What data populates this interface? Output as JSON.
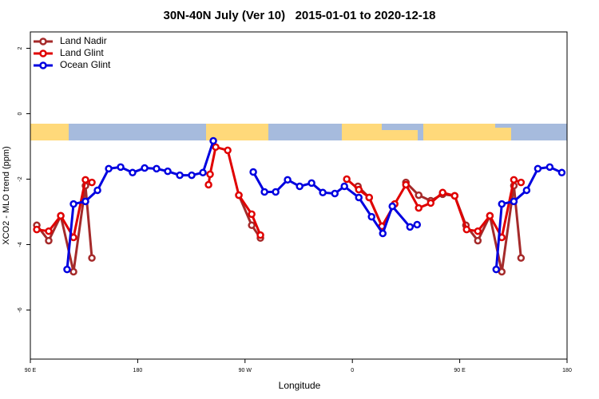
{
  "chart_data": {
    "type": "line",
    "title": "30N-40N July (Ver 10)   2015-01-01 to 2020-12-18",
    "x_label": "Longitude",
    "y_label": "XCO2 - MLO trend (ppm)",
    "xlim": [
      90,
      540
    ],
    "xticks": [
      {
        "value": 90,
        "label": "90 E"
      },
      {
        "value": 180,
        "label": "180"
      },
      {
        "value": 270,
        "label": "90 W"
      },
      {
        "value": 360,
        "label": "0"
      },
      {
        "value": 450,
        "label": "90 E"
      },
      {
        "value": 540,
        "label": "180"
      }
    ],
    "ylim": [
      -7.5,
      2.5
    ],
    "yticks": [
      -6,
      -4,
      -2,
      0,
      2
    ],
    "legend": "top-left",
    "series": [
      {
        "name": "Land Nadir",
        "color": "#a52a2a",
        "x": [
          95.4,
          105.4,
          115.5,
          126.2,
          136.2,
          141.6,
          null,
          264.8,
          275.6,
          282.9,
          null,
          364.7,
          374.1,
          384.8,
          null,
          404.9,
          415.6,
          425.7,
          435.7,
          445.8,
          455.2,
          465.2,
          475.3,
          485.3,
          495.4,
          501.4
        ],
        "values": [
          -3.41,
          -3.88,
          -3.12,
          -4.83,
          -2.2,
          -4.41,
          null,
          -2.49,
          -3.41,
          -3.8,
          null,
          -2.22,
          -2.56,
          -3.44,
          null,
          -2.1,
          -2.49,
          -2.66,
          -2.46,
          -2.51,
          -3.41,
          -3.88,
          -3.12,
          -4.83,
          -2.2,
          -4.41
        ]
      },
      {
        "name": "Land Glint",
        "color": "#e00000",
        "x": [
          95.4,
          105.4,
          115.5,
          126.2,
          136.2,
          141.6,
          null,
          239.4,
          240.7,
          245.4,
          255.5,
          264.8,
          275.6,
          282.9,
          null,
          355.3,
          365.4,
          374.1,
          384.8,
          395.5,
          404.9,
          415.6,
          425.7,
          435.7,
          445.8,
          455.8,
          465.2,
          475.3,
          485.3,
          495.4,
          501.4
        ],
        "values": [
          -3.54,
          -3.59,
          -3.12,
          -3.78,
          -2.02,
          -2.1,
          null,
          -2.17,
          -1.85,
          -1.02,
          -1.12,
          -2.49,
          -3.07,
          -3.71,
          null,
          -2.0,
          -2.32,
          -2.56,
          -3.44,
          -2.76,
          -2.17,
          -2.88,
          -2.73,
          -2.41,
          -2.51,
          -3.54,
          -3.59,
          -3.12,
          -3.78,
          -2.02,
          -2.1
        ]
      },
      {
        "name": "Ocean Glint",
        "color": "#0000e0",
        "x": [
          120.8,
          126.2,
          136.2,
          146.3,
          155.7,
          165.7,
          175.7,
          185.8,
          195.8,
          205.2,
          215.3,
          225.3,
          234.7,
          243.4,
          null,
          276.9,
          286.3,
          295.7,
          305.7,
          315.8,
          325.8,
          335.2,
          345.3,
          353.3,
          365.4,
          376.1,
          385.5,
          393.5,
          408.3,
          414.3,
          null,
          480.6,
          485.3,
          495.4,
          506.1,
          515.5,
          525.5,
          535.6
        ],
        "values": [
          -4.76,
          -2.76,
          -2.68,
          -2.34,
          -1.68,
          -1.63,
          -1.8,
          -1.66,
          -1.68,
          -1.76,
          -1.88,
          -1.88,
          -1.8,
          -0.83,
          null,
          -1.78,
          -2.39,
          -2.39,
          -2.02,
          -2.22,
          -2.12,
          -2.41,
          -2.44,
          -2.22,
          -2.56,
          -3.15,
          -3.66,
          -2.83,
          -3.46,
          -3.39,
          null,
          -4.76,
          -2.76,
          -2.68,
          -2.34,
          -1.68,
          -1.63,
          -1.8
        ]
      }
    ]
  }
}
